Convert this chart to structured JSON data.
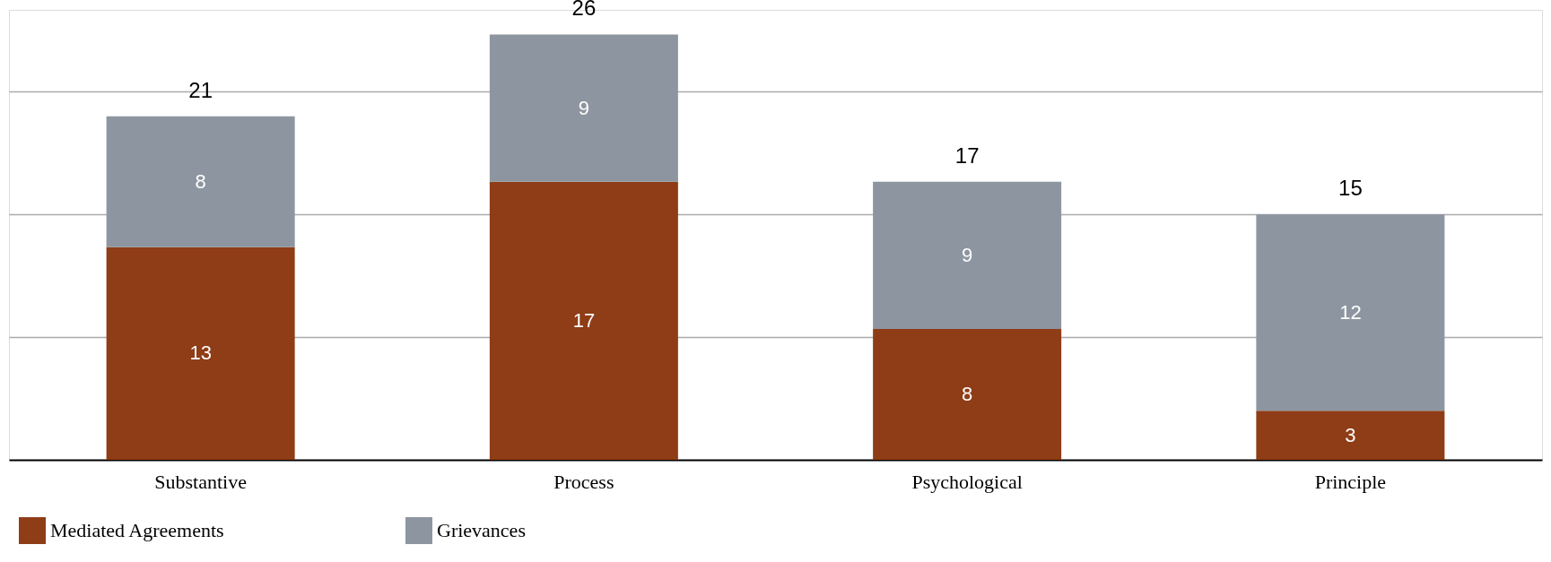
{
  "chart_data": {
    "type": "bar",
    "stacked": true,
    "categories": [
      "Substantive",
      "Process",
      "Psychological",
      "Principle"
    ],
    "series": [
      {
        "name": "Mediated Agreements",
        "color": "#8e3d17",
        "values": [
          13,
          17,
          8,
          3
        ]
      },
      {
        "name": "Grievances",
        "color": "#8d96a0",
        "values": [
          8,
          9,
          9,
          12
        ]
      }
    ],
    "totals": [
      "21",
      "26",
      "17",
      "15"
    ],
    "data_labels": true,
    "ylim": [
      0,
      27.5
    ],
    "yticks": [
      {
        "value": 7.5,
        "label": null
      },
      {
        "value": 15,
        "label": null
      },
      {
        "value": 22.5,
        "label": null
      }
    ],
    "tick_labels": "x",
    "grid": "y",
    "legend": "bottom"
  }
}
